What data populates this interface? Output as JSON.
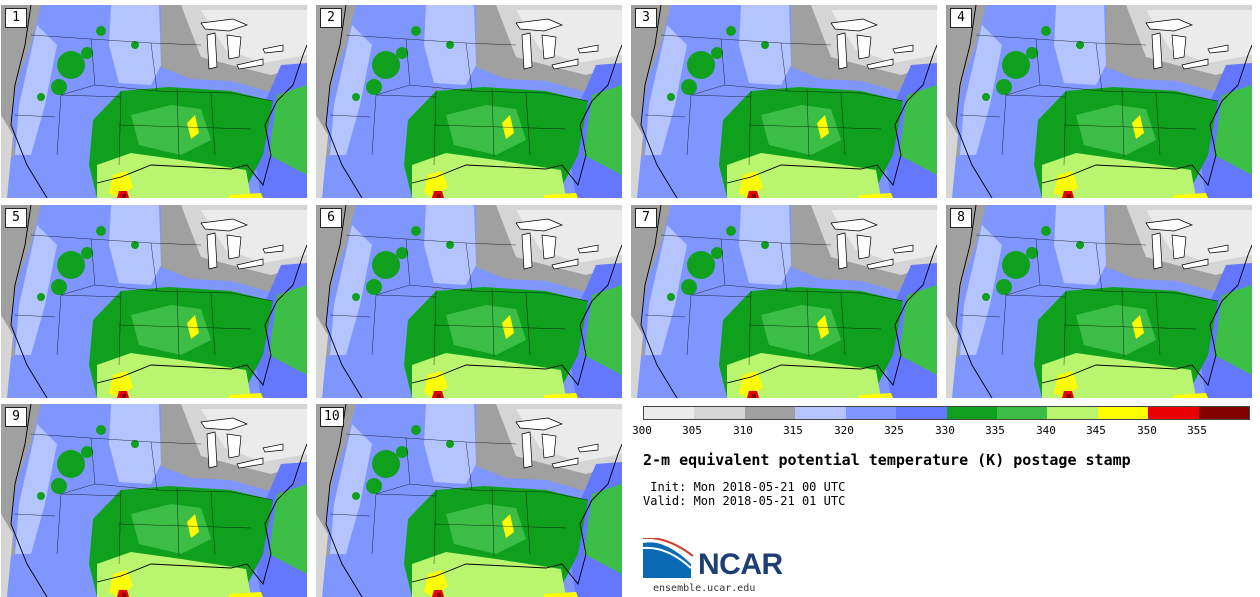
{
  "panels": [
    {
      "label": "1"
    },
    {
      "label": "2"
    },
    {
      "label": "3"
    },
    {
      "label": "4"
    },
    {
      "label": "5"
    },
    {
      "label": "6"
    },
    {
      "label": "7"
    },
    {
      "label": "8"
    },
    {
      "label": "9"
    },
    {
      "label": "10"
    }
  ],
  "colorbar": {
    "ticks": [
      "300",
      "305",
      "310",
      "315",
      "320",
      "325",
      "330",
      "335",
      "340",
      "345",
      "350",
      "355"
    ],
    "colors": [
      "#ebebeb",
      "#d5d5d5",
      "#a0a0a0",
      "#b4c4ff",
      "#7f96ff",
      "#6377ff",
      "#0fa01e",
      "#3cbe46",
      "#b9f56e",
      "#ffff00",
      "#e60000",
      "#820000"
    ]
  },
  "title": "2-m equivalent potential temperature (K) postage stamp",
  "init": " Init: Mon 2018-05-21 00 UTC",
  "valid": "Valid: Mon 2018-05-21 01 UTC",
  "logo": {
    "text": "NCAR"
  },
  "website": "ensemble.ucar.edu"
}
